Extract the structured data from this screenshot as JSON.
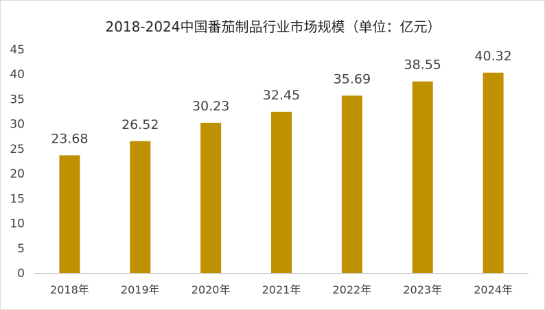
{
  "chart_data": {
    "type": "bar",
    "title": "2018-2024中国番茄制品行业市场规模（单位：亿元）",
    "categories": [
      "2018年",
      "2019年",
      "2020年",
      "2021年",
      "2022年",
      "2023年",
      "2024年"
    ],
    "values": [
      23.68,
      26.52,
      30.23,
      32.45,
      35.69,
      38.55,
      40.32
    ],
    "value_labels": [
      "23.68",
      "26.52",
      "30.23",
      "32.45",
      "35.69",
      "38.55",
      "40.32"
    ],
    "yticks": [
      "0",
      "5",
      "10",
      "15",
      "20",
      "25",
      "30",
      "35",
      "40",
      "45"
    ],
    "ylim": [
      0,
      45
    ],
    "grid": false,
    "legend": "none",
    "bar_color": "#BF9000"
  }
}
